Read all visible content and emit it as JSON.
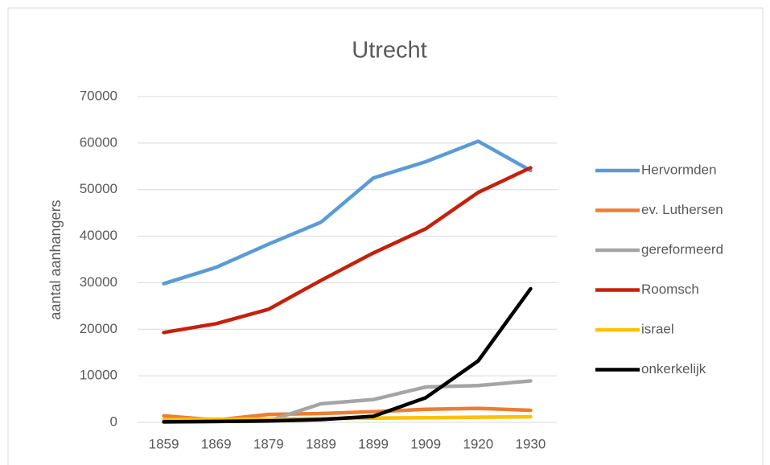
{
  "chart_data": {
    "type": "line",
    "title": "Utrecht",
    "y_label": "aantal aanhangers",
    "categories": [
      "1859",
      "1869",
      "1879",
      "1889",
      "1899",
      "1909",
      "1920",
      "1930"
    ],
    "series": [
      {
        "name": "Hervormden",
        "color": "#5b9bd5",
        "values": [
          29800,
          33300,
          38300,
          43000,
          52500,
          56000,
          60400,
          54100
        ]
      },
      {
        "name": "ev. Luthersen",
        "color": "#ed7d31",
        "values": [
          1400,
          500,
          1700,
          1900,
          2300,
          2800,
          3000,
          2600
        ]
      },
      {
        "name": "gereformeerd",
        "color": "#a5a5a5",
        "values": [
          100,
          200,
          300,
          4000,
          4900,
          7600,
          7900,
          8900
        ]
      },
      {
        "name": "Roomsch",
        "color": "#c5200c",
        "values": [
          19300,
          21200,
          24300,
          30500,
          36400,
          41600,
          49400,
          54700
        ]
      },
      {
        "name": "israel",
        "color": "#ffc000",
        "values": [
          600,
          700,
          700,
          800,
          900,
          1000,
          1100,
          1200
        ]
      },
      {
        "name": "onkerkelijk",
        "color": "#000000",
        "values": [
          100,
          200,
          300,
          600,
          1300,
          5300,
          13200,
          28700
        ]
      }
    ],
    "ylim": [
      0,
      70000
    ],
    "yticks": [
      0,
      10000,
      20000,
      30000,
      40000,
      50000,
      60000,
      70000
    ],
    "grid": true,
    "legend": "right"
  }
}
